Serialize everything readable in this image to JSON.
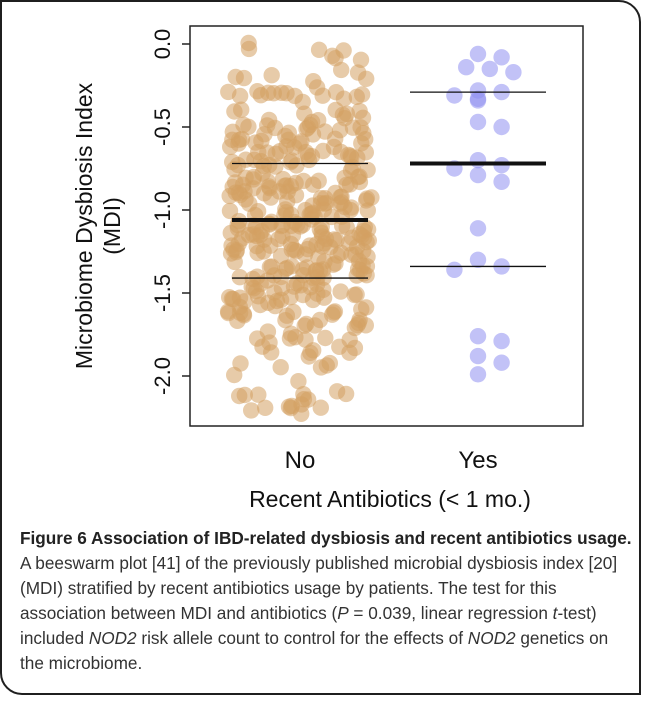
{
  "chart_data": {
    "type": "scatter",
    "subtype": "beeswarm",
    "categories": [
      "No",
      "Yes"
    ],
    "xlabel": "Recent Antibiotics (< 1 mo.)",
    "ylabel": "Microbiome Dysbiosis Index (MDI)",
    "ylabel_lines": [
      "Microbiome Dysbiosis Index",
      "(MDI)"
    ],
    "ylim": [
      -2.25,
      0.05
    ],
    "yticks": [
      0.0,
      -0.5,
      -1.0,
      -1.5,
      -2.0
    ],
    "ytick_labels": [
      "0.0",
      "-0.5",
      "-1.0",
      "-1.5",
      "-2.0"
    ],
    "series": [
      {
        "category": "No",
        "color": "#d4a062",
        "median": -1.06,
        "q1": -1.41,
        "q3": -0.72,
        "n_points": 380,
        "min": -2.23,
        "max": 0.01
      },
      {
        "category": "Yes",
        "color": "#8f8ff0",
        "median": -0.72,
        "q1": -1.34,
        "q3": -0.29,
        "values": [
          -0.06,
          -0.08,
          -0.14,
          -0.15,
          -0.17,
          -0.28,
          -0.29,
          -0.31,
          -0.33,
          -0.34,
          -0.47,
          -0.5,
          -0.7,
          -0.73,
          -0.75,
          -0.79,
          -0.83,
          -1.11,
          -1.3,
          -1.34,
          -1.36,
          -1.76,
          -1.79,
          -1.88,
          -1.92,
          -1.99
        ]
      }
    ],
    "grid": false,
    "legend": "none"
  },
  "caption": {
    "title": "Figure 6 Association of IBD-related dysbiosis and recent antibiotics usage.",
    "lines": [
      " A beeswarm plot [41] of the previously published microbial",
      "dysbiosis index [20] (MDI) stratified by recent antibiotics usage by patients.",
      "The test for this association between MDI and antibiotics (",
      "P",
      " = 0.039, linear",
      "regression ",
      "t",
      "-test) included ",
      "NOD2",
      " risk allele count to control for the effects",
      "of ",
      "NOD2",
      " genetics on the microbiome."
    ]
  }
}
